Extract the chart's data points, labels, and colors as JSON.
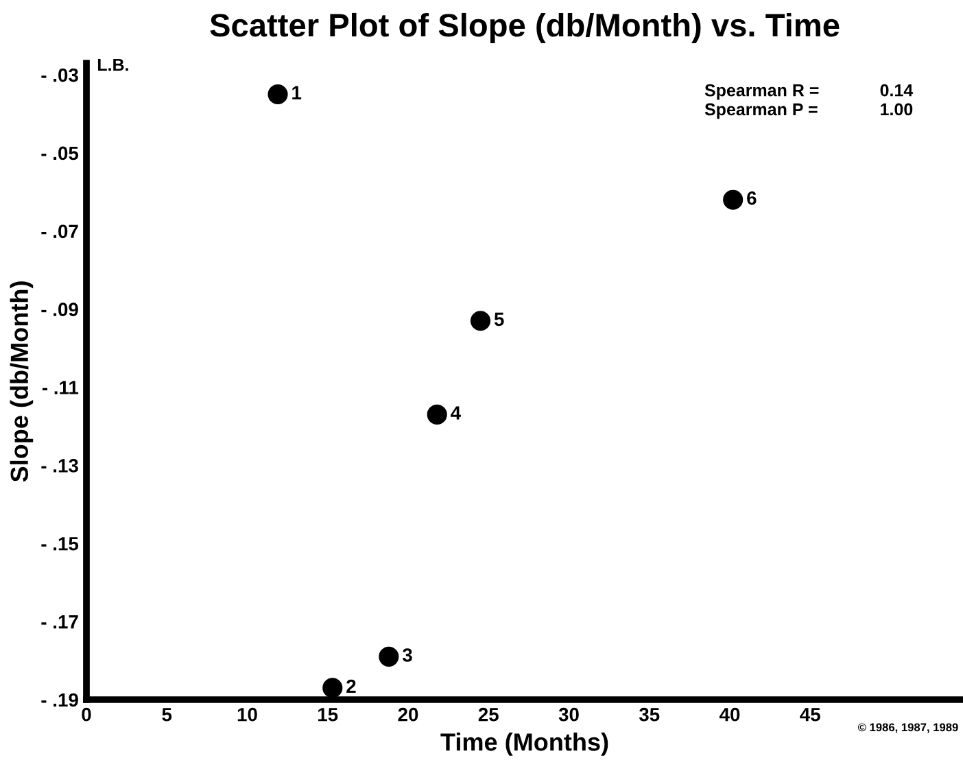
{
  "chart_data": {
    "type": "scatter",
    "title": "Scatter Plot of Slope (db/Month) vs. Time",
    "xlabel": "Time (Months)",
    "ylabel": "Slope (db/Month)",
    "x": [
      11.9,
      15.3,
      18.8,
      21.8,
      24.5,
      40.2
    ],
    "series": [
      {
        "color": "#000000",
        "values": [
          -0.035,
          -0.187,
          -0.179,
          -0.117,
          -0.093,
          -0.062
        ]
      }
    ],
    "xlim": [
      0,
      54.5
    ],
    "xticks": [
      0,
      5,
      10,
      15,
      20,
      25,
      30,
      35,
      40,
      45
    ],
    "ylim": [
      -0.19,
      -0.027
    ],
    "yticks": [
      {
        "value": -0.19,
        "label": "- .19"
      },
      {
        "value": -0.17,
        "label": "- .17"
      },
      {
        "value": -0.15,
        "label": "- .15"
      },
      {
        "value": -0.13,
        "label": "- .13"
      },
      {
        "value": -0.11,
        "label": "- .11"
      },
      {
        "value": -0.09,
        "label": "- .09"
      },
      {
        "value": -0.07,
        "label": "- .07"
      },
      {
        "value": -0.05,
        "label": "- .05"
      },
      {
        "value": -0.03,
        "label": "- .03"
      }
    ],
    "annotations": [
      "L.B.",
      "Spearman R =",
      "0.14",
      "Spearman P =",
      "1.00",
      "© 1986, 1987, 1989",
      {
        "text": "1",
        "x": 11.9,
        "y": -0.035
      },
      {
        "text": "2",
        "x": 15.3,
        "y": -0.187
      },
      {
        "text": "3",
        "x": 18.8,
        "y": -0.179
      },
      {
        "text": "4",
        "x": 21.8,
        "y": -0.117
      },
      {
        "text": "5",
        "x": 24.5,
        "y": -0.093
      },
      {
        "text": "6",
        "x": 40.2,
        "y": -0.062
      }
    ],
    "marker": "circle",
    "grid": false,
    "legend": false
  }
}
